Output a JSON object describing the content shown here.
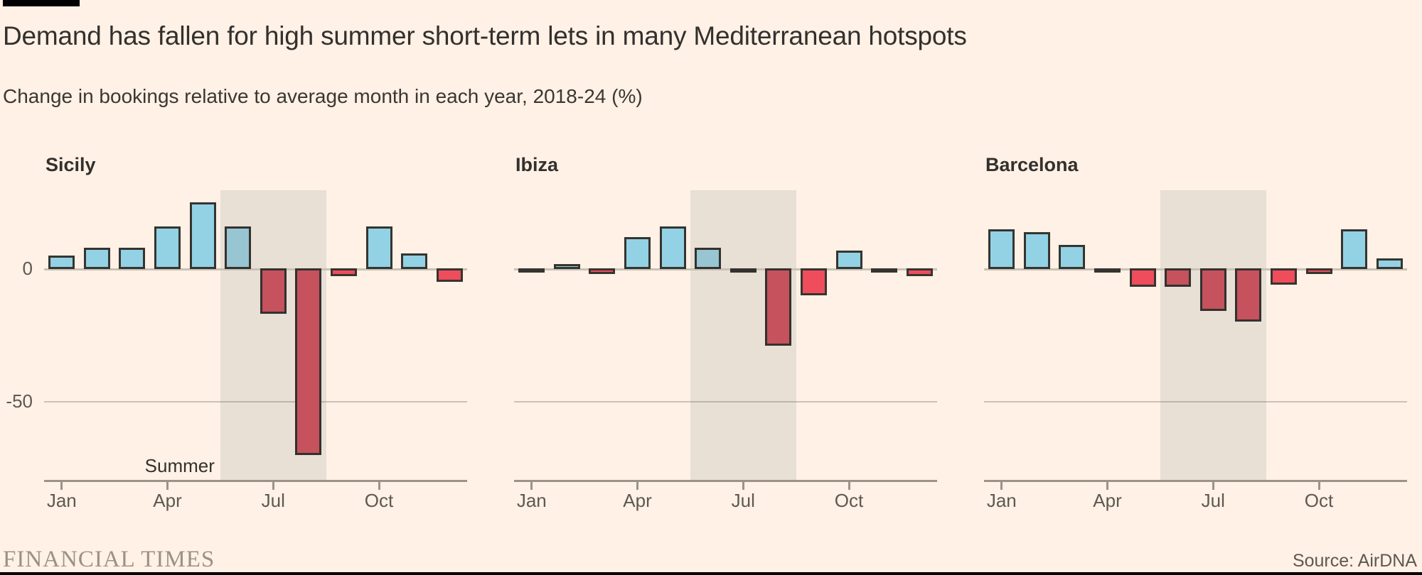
{
  "header": {
    "title": "Demand has fallen for high summer short-term lets in many Mediterranean hotspots",
    "subtitle": "Change in bookings relative to average month in each year, 2018-24 (%)"
  },
  "footer": {
    "brand": "FINANCIAL TIMES",
    "source": "Source: AirDNA"
  },
  "chart_data": {
    "type": "bar",
    "categories": [
      "Jan",
      "Feb",
      "Mar",
      "Apr",
      "May",
      "Jun",
      "Jul",
      "Aug",
      "Sep",
      "Oct",
      "Nov",
      "Dec"
    ],
    "x_tick_labels": [
      "Jan",
      "Apr",
      "Jul",
      "Oct"
    ],
    "y_ticks": [
      "0",
      "-50"
    ],
    "ylim": [
      -75,
      28
    ],
    "unit": "%",
    "grid": "single horizontal gridline at -50, zero baseline",
    "legend_position": "none",
    "shaded_region": {
      "label": "Summer",
      "from": "Jun",
      "to": "Aug"
    },
    "series": [
      {
        "name": "Sicily",
        "values": [
          5,
          8,
          8,
          16,
          25,
          16,
          -17,
          -70,
          -3,
          16,
          6,
          -5
        ]
      },
      {
        "name": "Ibiza",
        "values": [
          -1,
          2,
          -2,
          12,
          16,
          8,
          -1,
          -29,
          -10,
          7,
          -0.5,
          -3
        ]
      },
      {
        "name": "Barcelona",
        "values": [
          15,
          14,
          9,
          -0.5,
          -7,
          -7,
          -16,
          -20,
          -6,
          -2,
          15,
          4
        ]
      }
    ],
    "colors": {
      "positive": "#92D2E4",
      "negative": "#EF4D5C",
      "shaded_region": "#E8DFD5",
      "background": "#FFF1E5",
      "bar_border": "#363430"
    }
  }
}
